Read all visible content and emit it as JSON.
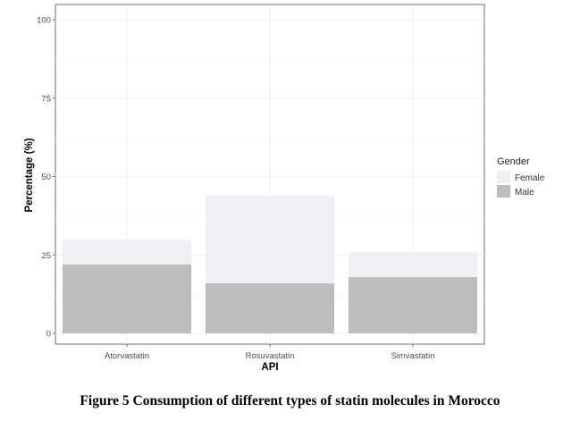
{
  "figure_caption": "Figure 5 Consumption of different types of statin molecules in Morocco",
  "chart_data": {
    "type": "bar",
    "stacked": true,
    "categories": [
      "Atorvastatin",
      "Rosuvastatin",
      "Simvastatin"
    ],
    "series": [
      {
        "name": "Male",
        "color": "#bdbdbd",
        "values": [
          22,
          16,
          18
        ]
      },
      {
        "name": "Female",
        "color": "#f0f0f4",
        "values": [
          8,
          28,
          8
        ]
      }
    ],
    "xlabel": "API",
    "ylabel": "Percentage (%)",
    "ylim": [
      0,
      100
    ],
    "yticks": [
      0,
      25,
      50,
      75,
      100
    ],
    "grid": true,
    "legend": {
      "title": "Gender",
      "position": "right",
      "order": [
        "Female",
        "Male"
      ]
    }
  }
}
